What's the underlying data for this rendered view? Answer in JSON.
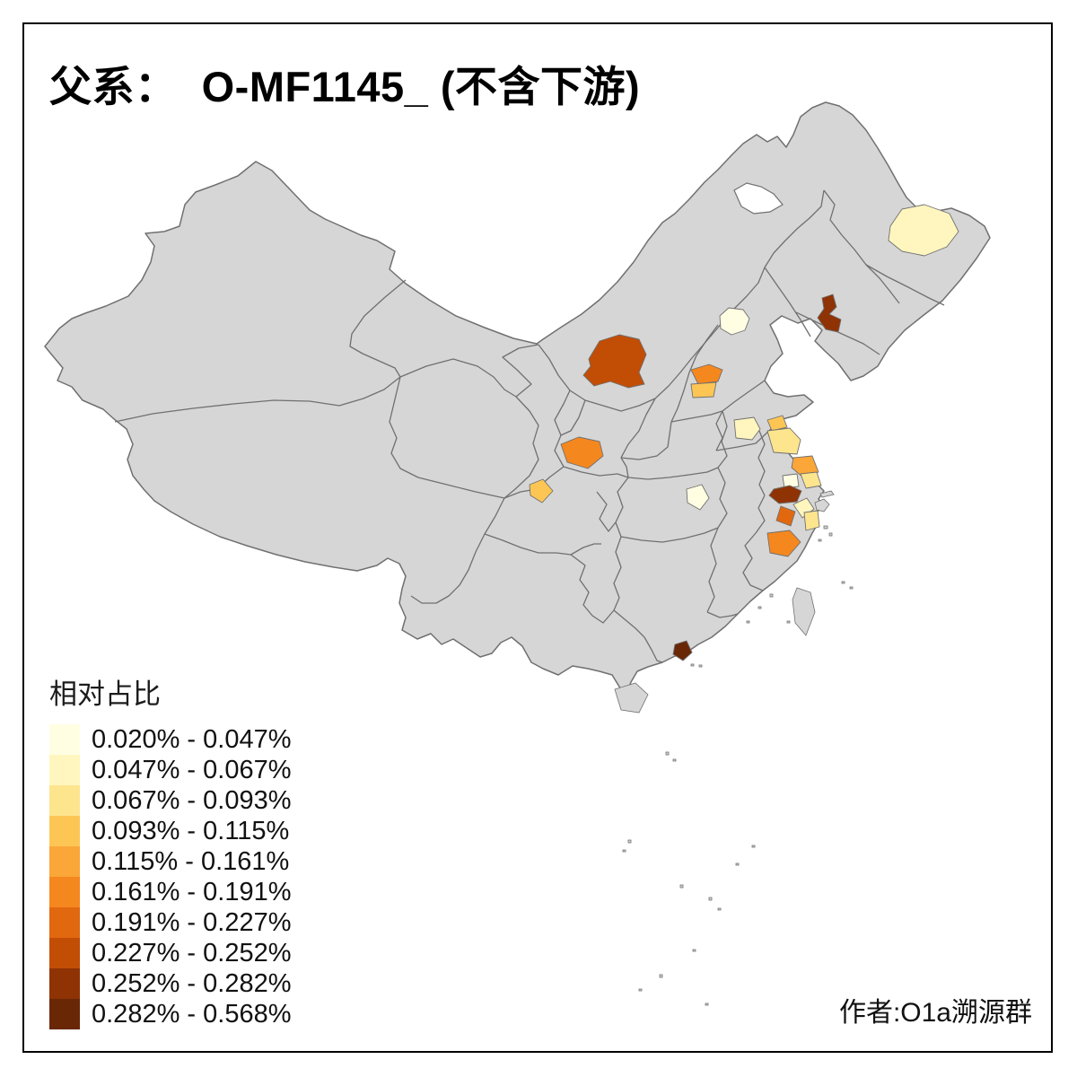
{
  "title": "父系：  O-MF1145_ (不含下游)",
  "attribution": "作者:O1a溯源群",
  "legend": {
    "title": "相对占比",
    "classes": [
      {
        "label": "0.020% - 0.047%",
        "color": "#FFFEE3"
      },
      {
        "label": "0.047% - 0.067%",
        "color": "#FEF6BE"
      },
      {
        "label": "0.067% - 0.093%",
        "color": "#FDE58E"
      },
      {
        "label": "0.093% - 0.115%",
        "color": "#FDC654"
      },
      {
        "label": "0.115% - 0.161%",
        "color": "#FAA638"
      },
      {
        "label": "0.161% - 0.191%",
        "color": "#F5871F"
      },
      {
        "label": "0.191% - 0.227%",
        "color": "#E1680F"
      },
      {
        "label": "0.227% - 0.252%",
        "color": "#C24D05"
      },
      {
        "label": "0.252% - 0.282%",
        "color": "#8F3204"
      },
      {
        "label": "0.282% - 0.568%",
        "color": "#692706"
      }
    ]
  },
  "map": {
    "land_color": "#D6D6D6",
    "border_color": "#707070",
    "sea_color": "#FFFFFF",
    "frame_color": "#000000",
    "regions": [
      {
        "id": "heilongjiang-central",
        "class_index": 1
      },
      {
        "id": "liaoning-south",
        "class_index": 8
      },
      {
        "id": "beijing",
        "class_index": 0
      },
      {
        "id": "ordos-inner-mongolia",
        "class_index": 7
      },
      {
        "id": "shijiazhuang-hebei",
        "class_index": 5
      },
      {
        "id": "south-hebei",
        "class_index": 3
      },
      {
        "id": "linyi-shandong",
        "class_index": 1
      },
      {
        "id": "lianyungang-jiangsu",
        "class_index": 3
      },
      {
        "id": "north-jiangsu",
        "class_index": 2
      },
      {
        "id": "yancheng-jiangsu",
        "class_index": 4
      },
      {
        "id": "xian-shaanxi",
        "class_index": 5
      },
      {
        "id": "northeast-sichuan",
        "class_index": 3
      },
      {
        "id": "east-hubei",
        "class_index": 0
      },
      {
        "id": "taizhou-jiangsu",
        "class_index": 0
      },
      {
        "id": "nantong-jiangsu",
        "class_index": 2
      },
      {
        "id": "nanjing-changzhou-jiangsu",
        "class_index": 8
      },
      {
        "id": "suzhou-jiaxing",
        "class_index": 1
      },
      {
        "id": "hangzhou-zhejiang",
        "class_index": 6
      },
      {
        "id": "ningbo-shaoxing-zhejiang",
        "class_index": 2
      },
      {
        "id": "jinhua-zhejiang",
        "class_index": 5
      },
      {
        "id": "shenzhen-guangdong",
        "class_index": 9
      }
    ]
  },
  "chart_data": {
    "type": "heatmap",
    "subtype": "choropleth-map",
    "title": "父系： O-MF1145_ (不含下游)",
    "legend_title": "相对占比",
    "unit": "%",
    "legend_position": "bottom-left",
    "bins": [
      "0.020% - 0.047%",
      "0.047% - 0.067%",
      "0.067% - 0.093%",
      "0.093% - 0.115%",
      "0.115% - 0.161%",
      "0.161% - 0.191%",
      "0.191% - 0.227%",
      "0.227% - 0.252%",
      "0.252% - 0.282%",
      "0.282% - 0.568%"
    ],
    "regions": [
      {
        "id": "heilongjiang-central",
        "bin": "0.047% - 0.067%"
      },
      {
        "id": "liaoning-south",
        "bin": "0.252% - 0.282%"
      },
      {
        "id": "beijing",
        "bin": "0.020% - 0.047%"
      },
      {
        "id": "ordos-inner-mongolia",
        "bin": "0.227% - 0.252%"
      },
      {
        "id": "shijiazhuang-hebei",
        "bin": "0.161% - 0.191%"
      },
      {
        "id": "south-hebei",
        "bin": "0.093% - 0.115%"
      },
      {
        "id": "linyi-shandong",
        "bin": "0.047% - 0.067%"
      },
      {
        "id": "lianyungang-jiangsu",
        "bin": "0.093% - 0.115%"
      },
      {
        "id": "north-jiangsu",
        "bin": "0.067% - 0.093%"
      },
      {
        "id": "yancheng-jiangsu",
        "bin": "0.115% - 0.161%"
      },
      {
        "id": "xian-shaanxi",
        "bin": "0.161% - 0.191%"
      },
      {
        "id": "northeast-sichuan",
        "bin": "0.093% - 0.115%"
      },
      {
        "id": "east-hubei",
        "bin": "0.020% - 0.047%"
      },
      {
        "id": "taizhou-jiangsu",
        "bin": "0.020% - 0.047%"
      },
      {
        "id": "nantong-jiangsu",
        "bin": "0.067% - 0.093%"
      },
      {
        "id": "nanjing-changzhou-jiangsu",
        "bin": "0.252% - 0.282%"
      },
      {
        "id": "suzhou-jiaxing",
        "bin": "0.047% - 0.067%"
      },
      {
        "id": "hangzhou-zhejiang",
        "bin": "0.191% - 0.227%"
      },
      {
        "id": "ningbo-shaoxing-zhejiang",
        "bin": "0.067% - 0.093%"
      },
      {
        "id": "jinhua-zhejiang",
        "bin": "0.161% - 0.191%"
      },
      {
        "id": "shenzhen-guangdong",
        "bin": "0.282% - 0.568%"
      }
    ]
  }
}
